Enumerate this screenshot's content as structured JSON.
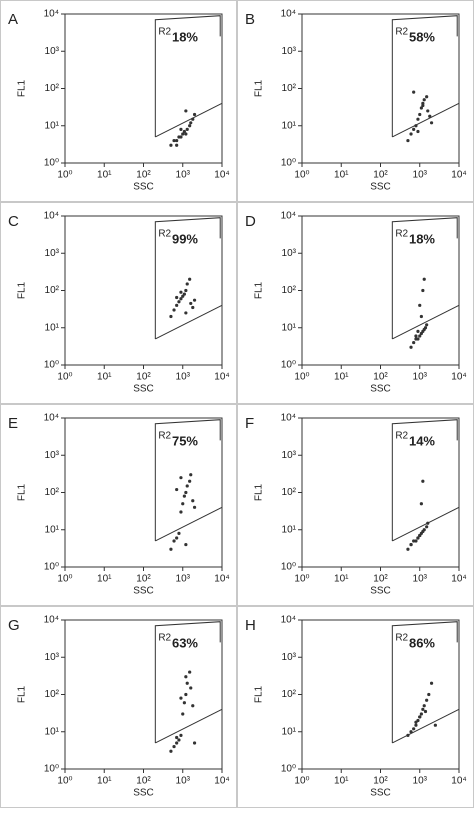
{
  "chart_data": [
    {
      "type": "scatter",
      "panel": "A",
      "annotation": "18%",
      "x_label": "SSC",
      "y_label": "FL1",
      "log_scale": true,
      "color": "#333333",
      "xlim": [
        1,
        10000
      ],
      "ylim": [
        1,
        10000
      ],
      "xticks": [
        {
          "value": 1,
          "label": "10⁰"
        },
        {
          "value": 10,
          "label": "10¹"
        },
        {
          "value": 100,
          "label": "10²"
        },
        {
          "value": 1000,
          "label": "10³"
        },
        {
          "value": 10000,
          "label": "10⁴"
        }
      ],
      "yticks": [
        {
          "value": 1,
          "label": "10⁰"
        },
        {
          "value": 10,
          "label": "10¹"
        },
        {
          "value": 100,
          "label": "10²"
        },
        {
          "value": 1000,
          "label": "10³"
        },
        {
          "value": 10000,
          "label": "10⁴"
        }
      ],
      "gate": {
        "label": "R2",
        "x": [
          200,
          200,
          9000,
          9000
        ],
        "y": [
          5,
          7000,
          9000,
          2500
        ]
      },
      "threshold": {
        "x": [
          200,
          10000
        ],
        "y": [
          5,
          40
        ]
      },
      "x": [
        500,
        600,
        700,
        800,
        900,
        1000,
        1100,
        1200,
        1300,
        1500,
        1600,
        1800,
        2000,
        700,
        900,
        1200
      ],
      "y": [
        3,
        4,
        4,
        5,
        5,
        6,
        7,
        6,
        8,
        10,
        12,
        15,
        20,
        3,
        8,
        25
      ]
    },
    {
      "type": "scatter",
      "panel": "B",
      "annotation": "58%",
      "x_label": "SSC",
      "y_label": "FL1",
      "log_scale": true,
      "color": "#333333",
      "xlim": [
        1,
        10000
      ],
      "ylim": [
        1,
        10000
      ],
      "xticks": [
        {
          "value": 1,
          "label": "10⁰"
        },
        {
          "value": 10,
          "label": "10¹"
        },
        {
          "value": 100,
          "label": "10²"
        },
        {
          "value": 1000,
          "label": "10³"
        },
        {
          "value": 10000,
          "label": "10⁴"
        }
      ],
      "yticks": [
        {
          "value": 1,
          "label": "10⁰"
        },
        {
          "value": 10,
          "label": "10¹"
        },
        {
          "value": 100,
          "label": "10²"
        },
        {
          "value": 1000,
          "label": "10³"
        },
        {
          "value": 10000,
          "label": "10⁴"
        }
      ],
      "gate": {
        "label": "R2",
        "x": [
          200,
          200,
          9000,
          9000
        ],
        "y": [
          5,
          7000,
          9000,
          2500
        ]
      },
      "threshold": {
        "x": [
          200,
          10000
        ],
        "y": [
          5,
          40
        ]
      },
      "x": [
        500,
        600,
        700,
        800,
        900,
        1000,
        1100,
        1200,
        1300,
        1500,
        1600,
        1800,
        2000,
        700,
        900,
        1200
      ],
      "y": [
        4,
        6,
        8,
        10,
        15,
        20,
        30,
        40,
        50,
        60,
        25,
        18,
        12,
        80,
        7,
        35
      ]
    },
    {
      "type": "scatter",
      "panel": "C",
      "annotation": "99%",
      "x_label": "SSC",
      "y_label": "FL1",
      "log_scale": true,
      "color": "#333333",
      "xlim": [
        1,
        10000
      ],
      "ylim": [
        1,
        10000
      ],
      "xticks": [
        {
          "value": 1,
          "label": "10⁰"
        },
        {
          "value": 10,
          "label": "10¹"
        },
        {
          "value": 100,
          "label": "10²"
        },
        {
          "value": 1000,
          "label": "10³"
        },
        {
          "value": 10000,
          "label": "10⁴"
        }
      ],
      "yticks": [
        {
          "value": 1,
          "label": "10⁰"
        },
        {
          "value": 10,
          "label": "10¹"
        },
        {
          "value": 100,
          "label": "10²"
        },
        {
          "value": 1000,
          "label": "10³"
        },
        {
          "value": 10000,
          "label": "10⁴"
        }
      ],
      "gate": {
        "label": "R2",
        "x": [
          200,
          200,
          9000,
          9000
        ],
        "y": [
          5,
          7000,
          9000,
          2500
        ]
      },
      "threshold": {
        "x": [
          200,
          10000
        ],
        "y": [
          5,
          40
        ]
      },
      "x": [
        500,
        600,
        700,
        800,
        900,
        1000,
        1100,
        1200,
        1300,
        1500,
        1600,
        1800,
        2000,
        700,
        900,
        1200
      ],
      "y": [
        20,
        30,
        40,
        50,
        60,
        70,
        80,
        100,
        150,
        200,
        45,
        35,
        55,
        65,
        90,
        25
      ]
    },
    {
      "type": "scatter",
      "panel": "D",
      "annotation": "18%",
      "x_label": "SSC",
      "y_label": "FL1",
      "log_scale": true,
      "color": "#333333",
      "xlim": [
        1,
        10000
      ],
      "ylim": [
        1,
        10000
      ],
      "xticks": [
        {
          "value": 1,
          "label": "10⁰"
        },
        {
          "value": 10,
          "label": "10¹"
        },
        {
          "value": 100,
          "label": "10²"
        },
        {
          "value": 1000,
          "label": "10³"
        },
        {
          "value": 10000,
          "label": "10⁴"
        }
      ],
      "yticks": [
        {
          "value": 1,
          "label": "10⁰"
        },
        {
          "value": 10,
          "label": "10¹"
        },
        {
          "value": 100,
          "label": "10²"
        },
        {
          "value": 1000,
          "label": "10³"
        },
        {
          "value": 10000,
          "label": "10⁴"
        }
      ],
      "gate": {
        "label": "R2",
        "x": [
          200,
          200,
          9000,
          9000
        ],
        "y": [
          5,
          7000,
          9000,
          2500
        ]
      },
      "threshold": {
        "x": [
          200,
          10000
        ],
        "y": [
          5,
          40
        ]
      },
      "x": [
        600,
        700,
        800,
        900,
        1000,
        1100,
        1200,
        1300,
        1400,
        1500,
        1000,
        1200,
        1300,
        800,
        900,
        1100
      ],
      "y": [
        3,
        4,
        5,
        5,
        6,
        7,
        8,
        9,
        10,
        12,
        40,
        100,
        200,
        6,
        8,
        20
      ]
    },
    {
      "type": "scatter",
      "panel": "E",
      "annotation": "75%",
      "x_label": "SSC",
      "y_label": "FL1",
      "log_scale": true,
      "color": "#333333",
      "xlim": [
        1,
        10000
      ],
      "ylim": [
        1,
        10000
      ],
      "xticks": [
        {
          "value": 1,
          "label": "10⁰"
        },
        {
          "value": 10,
          "label": "10¹"
        },
        {
          "value": 100,
          "label": "10²"
        },
        {
          "value": 1000,
          "label": "10³"
        },
        {
          "value": 10000,
          "label": "10⁴"
        }
      ],
      "yticks": [
        {
          "value": 1,
          "label": "10⁰"
        },
        {
          "value": 10,
          "label": "10¹"
        },
        {
          "value": 100,
          "label": "10²"
        },
        {
          "value": 1000,
          "label": "10³"
        },
        {
          "value": 10000,
          "label": "10⁴"
        }
      ],
      "gate": {
        "label": "R2",
        "x": [
          200,
          200,
          9000,
          9000
        ],
        "y": [
          5,
          7000,
          9000,
          2500
        ]
      },
      "threshold": {
        "x": [
          200,
          10000
        ],
        "y": [
          5,
          40
        ]
      },
      "x": [
        500,
        600,
        700,
        800,
        900,
        1000,
        1100,
        1200,
        1300,
        1500,
        1600,
        1800,
        2000,
        700,
        900,
        1200
      ],
      "y": [
        3,
        5,
        6,
        8,
        30,
        50,
        80,
        100,
        150,
        200,
        300,
        60,
        40,
        120,
        250,
        4
      ]
    },
    {
      "type": "scatter",
      "panel": "F",
      "annotation": "14%",
      "x_label": "SSC",
      "y_label": "FL1",
      "log_scale": true,
      "color": "#333333",
      "xlim": [
        1,
        10000
      ],
      "ylim": [
        1,
        10000
      ],
      "xticks": [
        {
          "value": 1,
          "label": "10⁰"
        },
        {
          "value": 10,
          "label": "10¹"
        },
        {
          "value": 100,
          "label": "10²"
        },
        {
          "value": 1000,
          "label": "10³"
        },
        {
          "value": 10000,
          "label": "10⁴"
        }
      ],
      "yticks": [
        {
          "value": 1,
          "label": "10⁰"
        },
        {
          "value": 10,
          "label": "10¹"
        },
        {
          "value": 100,
          "label": "10²"
        },
        {
          "value": 1000,
          "label": "10³"
        },
        {
          "value": 10000,
          "label": "10⁴"
        }
      ],
      "gate": {
        "label": "R2",
        "x": [
          200,
          200,
          9000,
          9000
        ],
        "y": [
          5,
          7000,
          9000,
          2500
        ]
      },
      "threshold": {
        "x": [
          200,
          10000
        ],
        "y": [
          5,
          40
        ]
      },
      "x": [
        500,
        600,
        700,
        800,
        900,
        1000,
        1100,
        1200,
        1300,
        1500,
        1600,
        900,
        1000,
        1100,
        1200,
        600
      ],
      "y": [
        3,
        4,
        5,
        5,
        6,
        7,
        8,
        9,
        10,
        12,
        15,
        6,
        7,
        50,
        200,
        4
      ]
    },
    {
      "type": "scatter",
      "panel": "G",
      "annotation": "63%",
      "x_label": "SSC",
      "y_label": "FL1",
      "log_scale": true,
      "color": "#333333",
      "xlim": [
        1,
        10000
      ],
      "ylim": [
        1,
        10000
      ],
      "xticks": [
        {
          "value": 1,
          "label": "10⁰"
        },
        {
          "value": 10,
          "label": "10¹"
        },
        {
          "value": 100,
          "label": "10²"
        },
        {
          "value": 1000,
          "label": "10³"
        },
        {
          "value": 10000,
          "label": "10⁴"
        }
      ],
      "yticks": [
        {
          "value": 1,
          "label": "10⁰"
        },
        {
          "value": 10,
          "label": "10¹"
        },
        {
          "value": 100,
          "label": "10²"
        },
        {
          "value": 1000,
          "label": "10³"
        },
        {
          "value": 10000,
          "label": "10⁴"
        }
      ],
      "gate": {
        "label": "R2",
        "x": [
          200,
          200,
          9000,
          9000
        ],
        "y": [
          5,
          7000,
          9000,
          2500
        ]
      },
      "threshold": {
        "x": [
          200,
          10000
        ],
        "y": [
          5,
          40
        ]
      },
      "x": [
        500,
        600,
        700,
        800,
        900,
        1000,
        1100,
        1200,
        1300,
        1500,
        1600,
        1800,
        2000,
        700,
        900,
        1200
      ],
      "y": [
        3,
        4,
        5,
        6,
        8,
        30,
        60,
        100,
        200,
        400,
        150,
        50,
        5,
        7,
        80,
        300
      ]
    },
    {
      "type": "scatter",
      "panel": "H",
      "annotation": "86%",
      "x_label": "SSC",
      "y_label": "FL1",
      "log_scale": true,
      "color": "#333333",
      "xlim": [
        1,
        10000
      ],
      "ylim": [
        1,
        10000
      ],
      "xticks": [
        {
          "value": 1,
          "label": "10⁰"
        },
        {
          "value": 10,
          "label": "10¹"
        },
        {
          "value": 100,
          "label": "10²"
        },
        {
          "value": 1000,
          "label": "10³"
        },
        {
          "value": 10000,
          "label": "10⁴"
        }
      ],
      "yticks": [
        {
          "value": 1,
          "label": "10⁰"
        },
        {
          "value": 10,
          "label": "10¹"
        },
        {
          "value": 100,
          "label": "10²"
        },
        {
          "value": 1000,
          "label": "10³"
        },
        {
          "value": 10000,
          "label": "10⁴"
        }
      ],
      "gate": {
        "label": "R2",
        "x": [
          200,
          200,
          9000,
          9000
        ],
        "y": [
          5,
          7000,
          9000,
          2500
        ]
      },
      "threshold": {
        "x": [
          200,
          10000
        ],
        "y": [
          5,
          40
        ]
      },
      "x": [
        500,
        600,
        700,
        800,
        900,
        1000,
        1100,
        1200,
        1300,
        1500,
        1700,
        2000,
        2500,
        800,
        1000,
        1400
      ],
      "y": [
        8,
        10,
        12,
        15,
        20,
        25,
        30,
        40,
        50,
        70,
        100,
        200,
        15,
        18,
        25,
        35
      ]
    }
  ]
}
